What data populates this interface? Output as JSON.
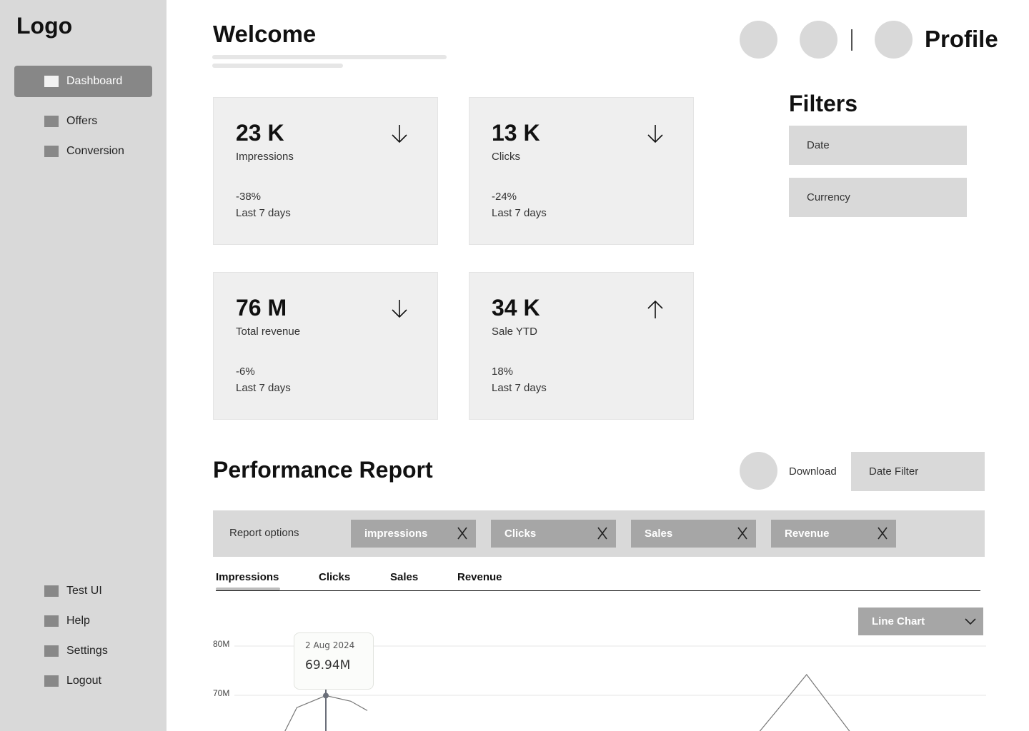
{
  "sidebar": {
    "logo": "Logo",
    "top_items": [
      {
        "label": "Dashboard",
        "active": true
      },
      {
        "label": "Offers"
      },
      {
        "label": "Conversion"
      }
    ],
    "bottom_items": [
      {
        "label": "Test UI"
      },
      {
        "label": "Help"
      },
      {
        "label": "Settings"
      },
      {
        "label": "Logout"
      }
    ]
  },
  "header": {
    "title": "Welcome",
    "profile_label": "Profile"
  },
  "kpis": [
    {
      "value": "23 K",
      "label": "Impressions",
      "change": "-38%",
      "period": "Last 7 days",
      "trend": "down"
    },
    {
      "value": "13 K",
      "label": "Clicks",
      "change": "-24%",
      "period": "Last 7 days",
      "trend": "down"
    },
    {
      "value": "76 M",
      "label": "Total revenue",
      "change": "-6%",
      "period": "Last 7 days",
      "trend": "down"
    },
    {
      "value": "34 K",
      "label": "Sale YTD",
      "change": "18%",
      "period": "Last 7 days",
      "trend": "up"
    }
  ],
  "filters": {
    "title": "Filters",
    "items": [
      "Date",
      "Currency"
    ]
  },
  "report": {
    "title": "Performance Report",
    "download_label": "Download",
    "date_filter_label": "Date Filter",
    "options_label": "Report options",
    "chips": [
      "impressions",
      "Clicks",
      "Sales",
      "Revenue"
    ],
    "chip_remove_glyph": "X",
    "tabs": [
      "Impressions",
      "Clicks",
      "Sales",
      "Revenue"
    ],
    "active_tab": "Impressions",
    "chart_type_label": "Line Chart"
  },
  "chart_data": {
    "type": "line",
    "ytick_labels": [
      "80M",
      "70M"
    ],
    "ytick_values": [
      80,
      70
    ],
    "y_unit": "M",
    "points": [
      {
        "x": 0.0,
        "y": 62.5
      },
      {
        "x": 0.3,
        "y": 67.5
      },
      {
        "x": 1.0,
        "y": 69.94
      },
      {
        "x": 1.6,
        "y": 68.8
      },
      {
        "x": 2.0,
        "y": 66.9
      },
      {
        "x": 11.4,
        "y": 62.0
      },
      {
        "x": 12.6,
        "y": 74.2
      },
      {
        "x": 13.7,
        "y": 62.0
      }
    ],
    "highlight": {
      "x": 1.0,
      "y": 69.94,
      "date": "2 Aug 2024",
      "value_label": "69.94M"
    }
  },
  "colors": {
    "sidebar_bg": "#d9d9d9",
    "active_nav": "#878787",
    "card_bg": "#efefef",
    "chip_bg": "#a6a6a6",
    "chart_line": "#777777"
  }
}
